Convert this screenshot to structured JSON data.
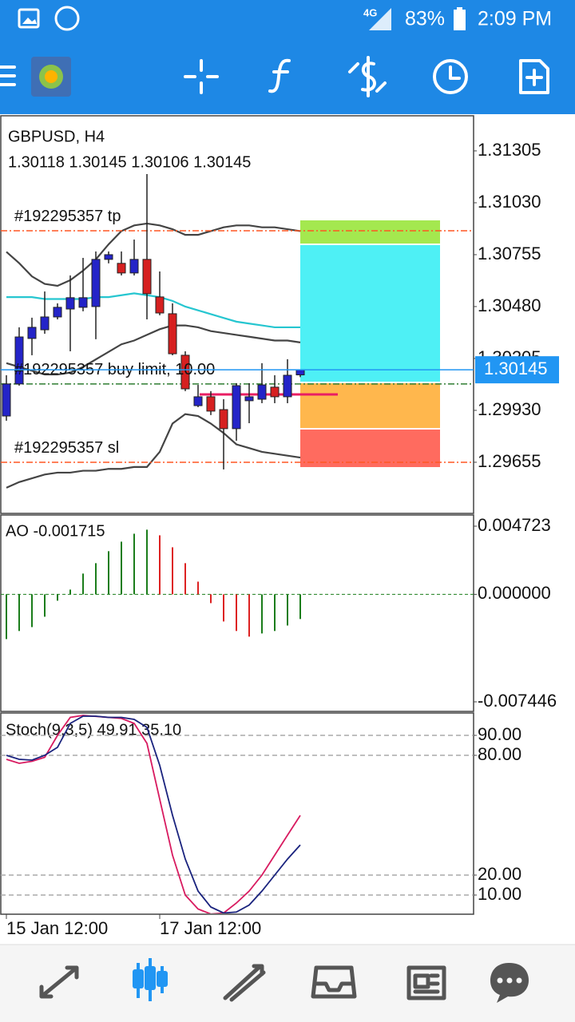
{
  "status_bar": {
    "network": "4G",
    "battery": "83%",
    "time": "2:09 PM"
  },
  "chart_data": [
    {
      "type": "candlestick",
      "title": "GBPUSD, H4",
      "subtitle": "1.30118 1.30145 1.30106 1.30145",
      "categories": [
        "15 Jan 12:00",
        null,
        null,
        null,
        null,
        null,
        null,
        null,
        null,
        null,
        null,
        null,
        "17 Jan 12:00",
        null,
        null,
        null,
        null,
        null,
        null,
        null,
        null,
        null,
        null,
        null
      ],
      "open": [
        1.299,
        1.3007,
        1.30311,
        1.30357,
        1.30425,
        1.30467,
        1.30476,
        1.3048,
        1.3073,
        1.30709,
        1.30658,
        1.3073,
        1.30531,
        1.30442,
        1.30222,
        1.29955,
        1.30002,
        1.29934,
        1.29833,
        1.29981,
        1.29989,
        1.30053,
        1.30002,
        1.30118
      ],
      "high": [
        1.30116,
        1.3037,
        1.30421,
        1.3056,
        1.30497,
        1.30645,
        1.30738,
        1.30772,
        1.30772,
        1.30772,
        1.30835,
        1.31182,
        1.30666,
        1.30497,
        1.30243,
        1.30065,
        1.30032,
        1.29989,
        1.30074,
        1.30074,
        1.3018,
        1.30116,
        1.30201,
        1.30145
      ],
      "low": [
        1.29875,
        1.30061,
        1.30222,
        1.30336,
        1.30412,
        1.30243,
        1.30455,
        1.30307,
        1.30709,
        1.30645,
        1.30645,
        1.30412,
        1.30434,
        1.30222,
        1.30032,
        1.29947,
        1.29905,
        1.29617,
        1.29769,
        1.29862,
        1.29968,
        1.29968,
        1.29968,
        1.30106
      ],
      "close": [
        1.3007,
        1.30319,
        1.3037,
        1.30425,
        1.30476,
        1.30527,
        1.30527,
        1.3073,
        1.30755,
        1.30658,
        1.3073,
        1.30548,
        1.30446,
        1.3023,
        1.30044,
        1.30002,
        1.29926,
        1.29833,
        1.30061,
        1.30002,
        1.30065,
        1.30002,
        1.30116,
        1.30145
      ],
      "up_color": "#2424c8",
      "down_color": "#d62020",
      "lines": [
        {
          "color": "#444444",
          "values": [
            1.3077,
            1.3071,
            1.3064,
            1.306,
            1.3059,
            1.3062,
            1.3067,
            1.3073,
            1.3081,
            1.3088,
            1.3091,
            1.3092,
            1.3091,
            1.3089,
            1.3086,
            1.3086,
            1.3088,
            1.309,
            1.3091,
            1.3091,
            1.309,
            1.309,
            1.3089,
            1.3088
          ]
        },
        {
          "color": "#26c6d0",
          "values": [
            1.3053,
            1.3053,
            1.3053,
            1.3052,
            1.3052,
            1.3052,
            1.3052,
            1.3053,
            1.3053,
            1.3054,
            1.3055,
            1.3054,
            1.3053,
            1.3051,
            1.3048,
            1.3046,
            1.3044,
            1.3042,
            1.304,
            1.3039,
            1.3038,
            1.3037,
            1.3037,
            1.3037
          ]
        },
        {
          "color": "#444444",
          "values": [
            1.3018,
            1.3016,
            1.3014,
            1.3012,
            1.3012,
            1.3013,
            1.3016,
            1.302,
            1.3024,
            1.3028,
            1.303,
            1.3033,
            1.3036,
            1.3038,
            1.3038,
            1.3037,
            1.3035,
            1.3034,
            1.3033,
            1.3032,
            1.3031,
            1.303,
            1.303,
            1.3029
          ]
        },
        {
          "color": "#444444",
          "values": [
            1.2952,
            1.2955,
            1.2957,
            1.2959,
            1.296,
            1.296,
            1.2961,
            1.2961,
            1.2962,
            1.2962,
            1.2963,
            1.2963,
            1.2971,
            1.2986,
            1.2991,
            1.299,
            1.2986,
            1.2981,
            1.2975,
            1.2973,
            1.2971,
            1.297,
            1.2969,
            1.2968
          ]
        }
      ],
      "orders": [
        {
          "label": "#192295357 tp",
          "value": 1.30882,
          "color": "#ff5722"
        },
        {
          "label": "#192295357 buy limit, 10.00",
          "value": 1.3007,
          "color": "#2e7d32"
        },
        {
          "label": "#192295357 sl",
          "value": 1.29655,
          "color": "#ff5722"
        }
      ],
      "last_price": {
        "value": 1.30145,
        "label": "1.30145"
      },
      "last_price_color": "#2196f3",
      "ylim": [
        1.29384,
        1.31491
      ],
      "yticks": [
        {
          "value": 1.31305,
          "label": "1.31305"
        },
        {
          "value": 1.3103,
          "label": "1.31030"
        },
        {
          "value": 1.30755,
          "label": "1.30755"
        },
        {
          "value": 1.3048,
          "label": "1.30480"
        },
        {
          "value": 1.30205,
          "label": "1.30205"
        },
        {
          "value": 1.2993,
          "label": "1.29930"
        },
        {
          "value": 1.29655,
          "label": "1.29655"
        }
      ]
    },
    {
      "type": "bar",
      "title": "AO -0.001715",
      "values": [
        -0.0031,
        -0.00254,
        -0.00227,
        -0.00155,
        -0.00044,
        0.00033,
        0.00144,
        0.00216,
        0.00299,
        0.00365,
        0.0042,
        0.00448,
        0.00409,
        0.00326,
        0.00216,
        0.00088,
        -0.00061,
        -0.00188,
        -0.00254,
        -0.00293,
        -0.00271,
        -0.00254,
        -0.00216,
        -0.00171
      ],
      "up_color": "#1b7d1b",
      "down_color": "#dd2222",
      "ylim": [
        -0.007446,
        0.004723
      ],
      "yticks": [
        {
          "value": 0.004723,
          "label": "0.004723"
        },
        {
          "value": 0,
          "label": "0.000000"
        },
        {
          "value": -0.007446,
          "label": "-0.007446"
        }
      ]
    },
    {
      "type": "line",
      "title": "Stoch(9,3,5) 49.91 35.10",
      "series": [
        {
          "color": "#d81b60",
          "values": [
            78,
            76,
            77,
            79,
            90,
            99,
            100,
            99.5,
            99,
            98.5,
            96,
            86,
            58,
            30,
            10,
            3,
            0.5,
            1,
            6,
            12,
            20,
            30,
            40,
            49.91
          ]
        },
        {
          "color": "#1a237e",
          "values": [
            80,
            78,
            77.6,
            80,
            84,
            96,
            99.6,
            99.6,
            99,
            99,
            98,
            94,
            75,
            50,
            28,
            12,
            4,
            1,
            1.5,
            5,
            12,
            20,
            28,
            35.1
          ]
        }
      ],
      "ylim": [
        0,
        100
      ],
      "yticks": [
        {
          "value": 90,
          "label": "90.00"
        },
        {
          "value": 80,
          "label": "80.00"
        },
        {
          "value": 20,
          "label": "20.00"
        },
        {
          "value": 10,
          "label": "10.00"
        }
      ]
    }
  ]
}
